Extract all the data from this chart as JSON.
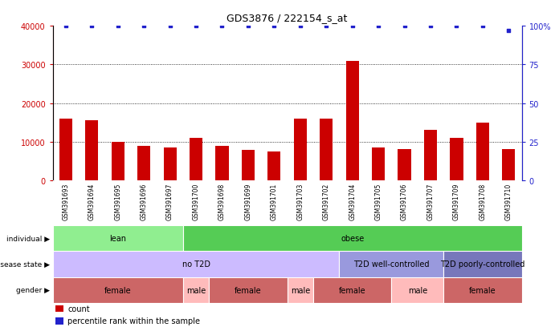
{
  "title": "GDS3876 / 222154_s_at",
  "samples": [
    "GSM391693",
    "GSM391694",
    "GSM391695",
    "GSM391696",
    "GSM391697",
    "GSM391700",
    "GSM391698",
    "GSM391699",
    "GSM391701",
    "GSM391703",
    "GSM391702",
    "GSM391704",
    "GSM391705",
    "GSM391706",
    "GSM391707",
    "GSM391709",
    "GSM391708",
    "GSM391710"
  ],
  "bar_values": [
    16000,
    15500,
    10000,
    9000,
    8500,
    11000,
    9000,
    7800,
    7500,
    16000,
    16000,
    31000,
    8500,
    8000,
    13000,
    11000,
    15000,
    8000
  ],
  "dot_values": [
    100,
    100,
    100,
    100,
    100,
    100,
    100,
    100,
    100,
    100,
    100,
    100,
    100,
    100,
    100,
    100,
    100,
    97
  ],
  "bar_color": "#cc0000",
  "dot_color": "#2222cc",
  "ylim_left": [
    0,
    40000
  ],
  "ylim_right": [
    0,
    100
  ],
  "yticks_left": [
    0,
    10000,
    20000,
    30000,
    40000
  ],
  "yticks_right": [
    0,
    25,
    50,
    75,
    100
  ],
  "yticklabels_right": [
    "0",
    "25",
    "50",
    "75",
    "100%"
  ],
  "grid_values": [
    10000,
    20000,
    30000
  ],
  "individual_groups": [
    {
      "label": "lean",
      "start": 0,
      "end": 5,
      "color": "#90ee90"
    },
    {
      "label": "obese",
      "start": 5,
      "end": 18,
      "color": "#55cc55"
    }
  ],
  "disease_groups": [
    {
      "label": "no T2D",
      "start": 0,
      "end": 11,
      "color": "#ccbbff"
    },
    {
      "label": "T2D well-controlled",
      "start": 11,
      "end": 15,
      "color": "#9999dd"
    },
    {
      "label": "T2D poorly-controlled",
      "start": 15,
      "end": 18,
      "color": "#7777bb"
    }
  ],
  "gender_groups": [
    {
      "label": "female",
      "start": 0,
      "end": 5,
      "color": "#cc6666"
    },
    {
      "label": "male",
      "start": 5,
      "end": 6,
      "color": "#ffbbbb"
    },
    {
      "label": "female",
      "start": 6,
      "end": 9,
      "color": "#cc6666"
    },
    {
      "label": "male",
      "start": 9,
      "end": 10,
      "color": "#ffbbbb"
    },
    {
      "label": "female",
      "start": 10,
      "end": 13,
      "color": "#cc6666"
    },
    {
      "label": "male",
      "start": 13,
      "end": 15,
      "color": "#ffbbbb"
    },
    {
      "label": "female",
      "start": 15,
      "end": 18,
      "color": "#cc6666"
    }
  ],
  "row_labels": [
    "individual",
    "disease state",
    "gender"
  ],
  "legend_items": [
    {
      "label": "count",
      "color": "#cc0000"
    },
    {
      "label": "percentile rank within the sample",
      "color": "#2222cc"
    }
  ],
  "bg_color": "#ffffff",
  "xtick_bg": "#cccccc"
}
